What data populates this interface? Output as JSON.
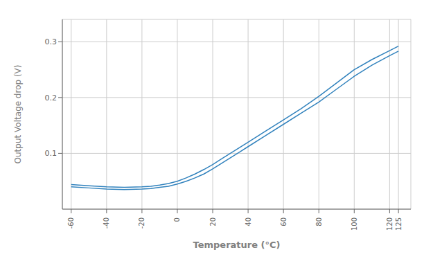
{
  "chart_data": {
    "type": "line",
    "xlabel": "Temperature (°C)",
    "ylabel": "Output Voltage drop (V)",
    "x": [
      -60,
      -50,
      -40,
      -30,
      -20,
      -15,
      -10,
      -5,
      0,
      5,
      10,
      15,
      20,
      25,
      30,
      35,
      40,
      50,
      60,
      70,
      80,
      90,
      100,
      110,
      120,
      125
    ],
    "series": [
      {
        "values": [
          0.04,
          0.038,
          0.036,
          0.035,
          0.036,
          0.037,
          0.039,
          0.041,
          0.045,
          0.05,
          0.056,
          0.063,
          0.072,
          0.082,
          0.092,
          0.102,
          0.112,
          0.132,
          0.152,
          0.172,
          0.192,
          0.215,
          0.238,
          0.258,
          0.275,
          0.283
        ]
      },
      {
        "values": [
          0.044,
          0.042,
          0.04,
          0.039,
          0.04,
          0.041,
          0.043,
          0.046,
          0.05,
          0.056,
          0.063,
          0.071,
          0.08,
          0.09,
          0.1,
          0.11,
          0.12,
          0.14,
          0.16,
          0.18,
          0.202,
          0.226,
          0.25,
          0.268,
          0.284,
          0.292
        ]
      }
    ],
    "xlim": [
      -65,
      132
    ],
    "ylim": [
      0,
      0.34
    ],
    "xticks": [
      -60,
      -40,
      -20,
      0,
      20,
      40,
      60,
      80,
      100,
      120,
      125
    ],
    "yticks": [
      0.1,
      0.2,
      0.3
    ],
    "grid": true
  }
}
